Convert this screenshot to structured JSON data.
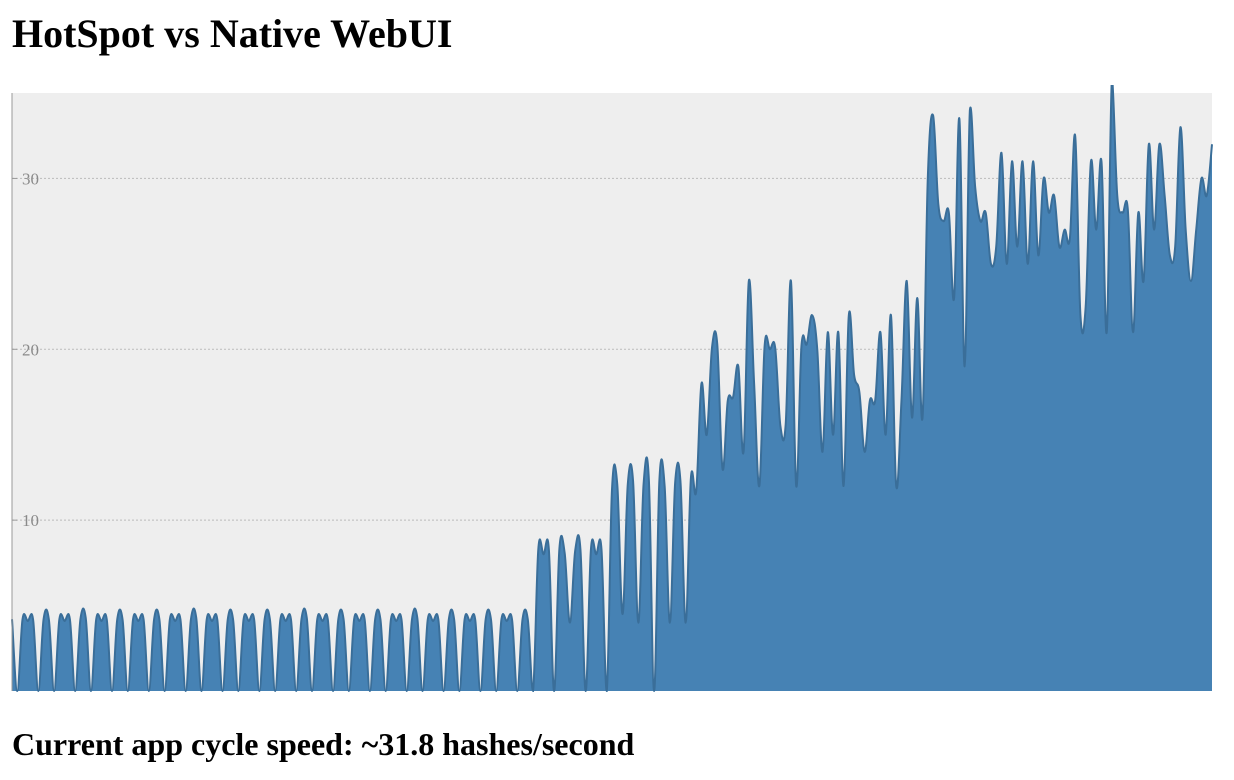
{
  "title": "HotSpot vs Native WebUI",
  "status": {
    "text": "Current app cycle speed: ~31.8 hashes/second"
  },
  "colors": {
    "area_fill": "#4682b4",
    "area_stroke": "#3a6e99",
    "plot_background": "#eeeeee",
    "grid": "#bbbbbb",
    "tick_text": "#8a8a8a"
  },
  "chart_data": {
    "type": "area",
    "title": "",
    "xlabel": "",
    "ylabel": "",
    "ylim": [
      0,
      35
    ],
    "yticks": [
      10,
      20,
      30
    ],
    "grid": "horizontal dotted",
    "series": [
      {
        "values": [
          4.2,
          0,
          4.2,
          4.1,
          4.2,
          0,
          4.2,
          4.2,
          0,
          4.2,
          4.1,
          4.2,
          0,
          4.2,
          4.3,
          0,
          4.2,
          4.1,
          4.2,
          0,
          4.2,
          4.2,
          0,
          4.2,
          4.1,
          4.2,
          0,
          4.2,
          4.2,
          0,
          4.2,
          4.1,
          4.2,
          0,
          4.2,
          4.3,
          0,
          4.2,
          4.1,
          4.2,
          0,
          4.2,
          4.2,
          0,
          4.2,
          4.1,
          4.2,
          0,
          4.2,
          4.2,
          0,
          4.2,
          4.1,
          4.2,
          0,
          4.2,
          4.3,
          0,
          4.2,
          4.1,
          4.2,
          0,
          4.2,
          4.2,
          0,
          4.2,
          4.1,
          4.2,
          0,
          4.2,
          4.2,
          0,
          4.2,
          4.1,
          4.2,
          0,
          4.2,
          4.3,
          0,
          4.2,
          4.1,
          4.2,
          0,
          4.2,
          4.2,
          0,
          4.2,
          4.1,
          4.2,
          0,
          4.2,
          4.2,
          0,
          4.2,
          4.1,
          4.2,
          0,
          4.2,
          4.2,
          0,
          8.3,
          8.0,
          8.3,
          0,
          8.3,
          8.1,
          4.0,
          8.2,
          8.3,
          0,
          8.3,
          8.0,
          8.3,
          0,
          11.8,
          12.1,
          4.5,
          12.1,
          12.3,
          4.0,
          12.1,
          12.4,
          0,
          12.3,
          12.0,
          4.0,
          12.2,
          12.3,
          4.0,
          12.5,
          11.7,
          18.0,
          15.0,
          20.1,
          20.3,
          13.0,
          17.0,
          17.2,
          19.0,
          14.0,
          24.0,
          18.0,
          12.0,
          20.2,
          20.0,
          20.1,
          15.5,
          15.6,
          24.0,
          12.0,
          20.2,
          20.3,
          22.0,
          20.0,
          14.0,
          21.0,
          15.0,
          21.0,
          12.0,
          22.0,
          18.5,
          17.5,
          14.0,
          17.0,
          17.0,
          21.0,
          15.0,
          22.0,
          12.0,
          17.0,
          24.0,
          16.0,
          23.0,
          16.0,
          30.0,
          33.7,
          28.5,
          27.5,
          28.0,
          23.0,
          33.5,
          19.0,
          34.0,
          29.5,
          27.5,
          28.0,
          25.0,
          26.0,
          31.5,
          25.0,
          31.0,
          26.0,
          31.0,
          25.0,
          31.0,
          25.5,
          30.0,
          28.0,
          29.0,
          26.0,
          27.0,
          26.5,
          32.5,
          22.0,
          22.5,
          31.0,
          27.0,
          31.0,
          21.0,
          36.0,
          29.0,
          28.0,
          28.2,
          21.0,
          28.0,
          24.0,
          32.0,
          27.0,
          32.0,
          29.0,
          25.5,
          26.0,
          33.0,
          27.0,
          24.0,
          27.0,
          30.0,
          29.0,
          32.0
        ]
      }
    ]
  }
}
